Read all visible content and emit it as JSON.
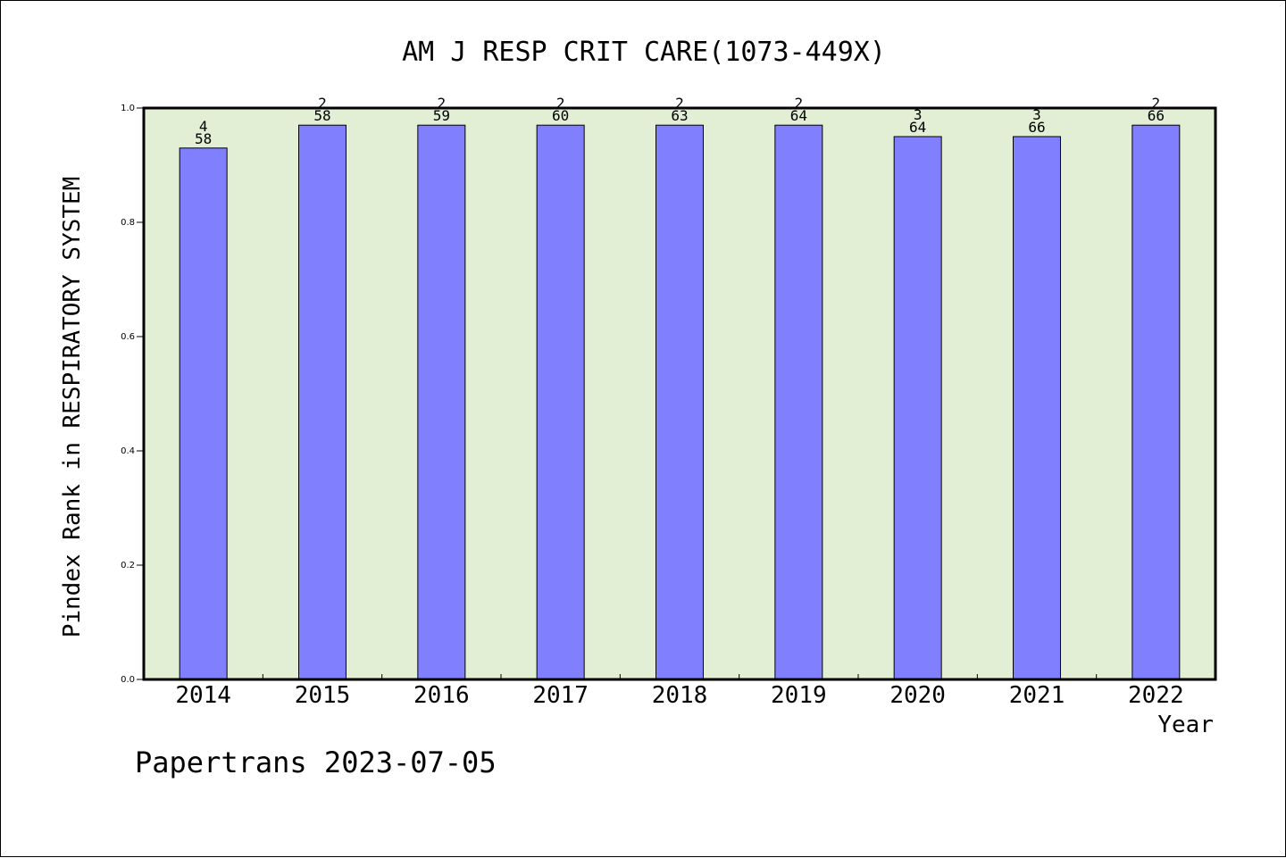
{
  "chart_data": {
    "type": "bar",
    "title": "AM J RESP CRIT CARE(1073-449X)",
    "xlabel": "Year",
    "ylabel": "Pindex Rank in RESPIRATORY SYSTEM",
    "categories": [
      "2014",
      "2015",
      "2016",
      "2017",
      "2018",
      "2019",
      "2020",
      "2021",
      "2022"
    ],
    "values": [
      0.93,
      0.97,
      0.97,
      0.97,
      0.97,
      0.97,
      0.95,
      0.95,
      0.97
    ],
    "rank_labels": [
      "4",
      "2",
      "2",
      "2",
      "2",
      "2",
      "3",
      "3",
      "2"
    ],
    "total_labels": [
      "58",
      "58",
      "59",
      "60",
      "63",
      "64",
      "64",
      "66",
      "66"
    ],
    "ylim": [
      0,
      1.0
    ],
    "yticks": [
      "0.0",
      "0.2",
      "0.4",
      "0.6",
      "0.8",
      "1.0"
    ],
    "grid": false,
    "legend": "none",
    "colors": {
      "bar": "#8080ff",
      "plot_background": "#e2efd5",
      "axis": "#000000"
    }
  },
  "footer": {
    "credit": "Papertrans 2023-07-05"
  }
}
